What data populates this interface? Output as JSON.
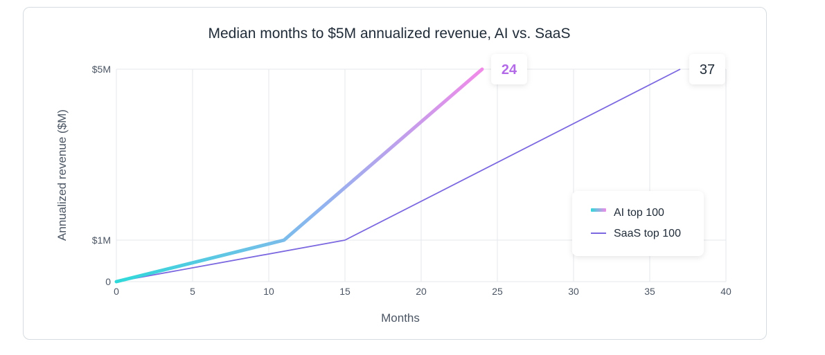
{
  "chart_data": {
    "type": "line",
    "title": "Median months to $5M annualized revenue, AI vs. SaaS",
    "xlabel": "Months",
    "ylabel": "Annualized revenue ($M)",
    "xlim": [
      0,
      40
    ],
    "ylim": [
      0,
      5
    ],
    "x_ticks": [
      0,
      5,
      10,
      15,
      20,
      25,
      30,
      35,
      40
    ],
    "x_tick_labels": [
      "0",
      "5",
      "10",
      "15",
      "20",
      "25",
      "30",
      "35",
      "40"
    ],
    "y_ticks": [
      0,
      1,
      5
    ],
    "y_tick_labels": [
      "0",
      "$1M",
      "$5M"
    ],
    "grid": true,
    "legend_position": "right",
    "series": [
      {
        "name": "AI top 100",
        "x": [
          0,
          11,
          24
        ],
        "y": [
          0,
          1,
          5
        ],
        "color_start": "#2fd9d9",
        "color_mid": "#8fb4ef",
        "color_end": "#f08be8",
        "end_label": "24",
        "end_label_color": "#b36ae6"
      },
      {
        "name": "SaaS top 100",
        "x": [
          0,
          15,
          37
        ],
        "y": [
          0,
          1,
          5
        ],
        "color": "#7b68e0",
        "end_label": "37",
        "end_label_color": "#1f2a37"
      }
    ]
  }
}
